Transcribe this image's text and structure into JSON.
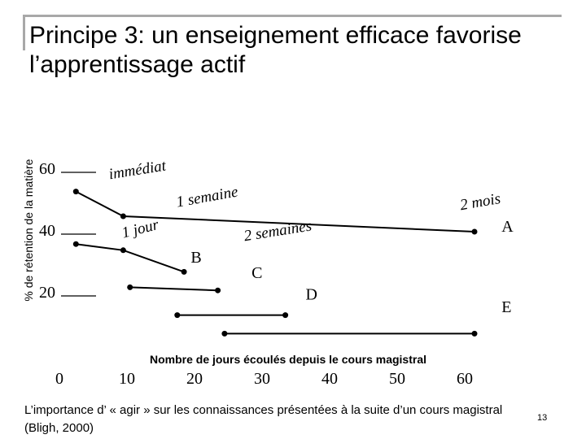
{
  "slide": {
    "title": "Principe 3: un enseignement efficace favorise l’apprentissage actif",
    "caption": "L’importance d’ « agir » sur les connaissances présentées à la suite d’un cours magistral (Bligh, 2000)",
    "page_number": "13"
  },
  "chart_data": {
    "type": "line",
    "xlabel": "Nombre de jours écoulés depuis le cours magistral",
    "ylabel": "% de rétention de la matière",
    "xlim": [
      0,
      60
    ],
    "ylim": [
      0,
      65
    ],
    "x_ticks": [
      "0",
      "10",
      "20",
      "30",
      "40",
      "50",
      "60"
    ],
    "y_ticks": [
      "20",
      "40",
      "60"
    ],
    "series": [
      {
        "name": "A",
        "x": [
          1,
          8,
          60
        ],
        "y": [
          53,
          45,
          40
        ]
      },
      {
        "name": "B",
        "x": [
          1,
          8,
          17
        ],
        "y": [
          36,
          34,
          27
        ]
      },
      {
        "name": "C",
        "x": [
          9,
          22
        ],
        "y": [
          22,
          21
        ]
      },
      {
        "name": "D",
        "x": [
          16,
          32
        ],
        "y": [
          13,
          13
        ]
      },
      {
        "name": "E",
        "x": [
          23,
          60
        ],
        "y": [
          7,
          7
        ]
      }
    ],
    "annotations": [
      {
        "text": "immédiat",
        "x": 6,
        "y": 57
      },
      {
        "text": "1 semaine",
        "x": 16,
        "y": 48
      },
      {
        "text": "2 mois",
        "x": 58,
        "y": 47
      },
      {
        "text": "1 jour",
        "x": 8,
        "y": 38
      },
      {
        "text": "2 semaines",
        "x": 26,
        "y": 37
      },
      {
        "text": "A",
        "x": 64,
        "y": 40
      },
      {
        "text": "B",
        "x": 18,
        "y": 30
      },
      {
        "text": "C",
        "x": 27,
        "y": 25
      },
      {
        "text": "D",
        "x": 35,
        "y": 18
      },
      {
        "text": "E",
        "x": 64,
        "y": 14
      }
    ],
    "line_color": "#000000",
    "grid": false
  }
}
